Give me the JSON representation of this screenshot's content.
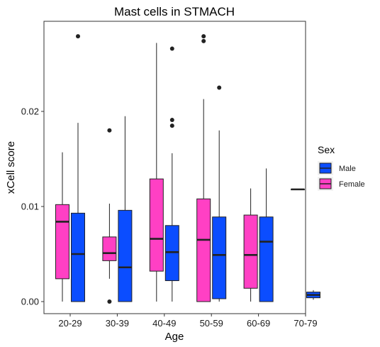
{
  "chart_data": {
    "type": "boxplot",
    "title": "Mast cells in STMACH",
    "xlabel": "Age",
    "ylabel": "xCell score",
    "categories": [
      "20-29",
      "30-39",
      "40-49",
      "50-59",
      "60-69",
      "70-79"
    ],
    "y_ticks": [
      0.0,
      0.01,
      0.02
    ],
    "y_tick_labels": [
      "0.00",
      "0.01",
      "0.02"
    ],
    "ylim": [
      -0.0013,
      0.0294
    ],
    "grid": false,
    "legend": {
      "title": "Sex",
      "position": "right",
      "entries": [
        {
          "name": "Male",
          "color": "#0b4dff"
        },
        {
          "name": "Female",
          "color": "#ff40c4"
        }
      ]
    },
    "series": [
      {
        "name": "Female",
        "color": "#ff40c4",
        "boxes": [
          {
            "category": "20-29",
            "whisker_low": 0.0,
            "q1": 0.0024,
            "median": 0.0084,
            "q3": 0.0102,
            "whisker_high": 0.0157,
            "outliers": []
          },
          {
            "category": "30-39",
            "whisker_low": 0.0024,
            "q1": 0.0043,
            "median": 0.0051,
            "q3": 0.0068,
            "whisker_high": 0.0103,
            "outliers": [
              0.018,
              0.0
            ]
          },
          {
            "category": "40-49",
            "whisker_low": 0.0,
            "q1": 0.0032,
            "median": 0.0066,
            "q3": 0.0129,
            "whisker_high": 0.0272,
            "outliers": []
          },
          {
            "category": "50-59",
            "whisker_low": 0.0,
            "q1": 0.0,
            "median": 0.0065,
            "q3": 0.0108,
            "whisker_high": 0.0213,
            "outliers": [
              0.0279,
              0.0274
            ]
          },
          {
            "category": "60-69",
            "whisker_low": 0.0,
            "q1": 0.0014,
            "median": 0.0049,
            "q3": 0.0091,
            "whisker_high": 0.0119,
            "outliers": []
          },
          {
            "category": "70-79",
            "whisker_low": 0.0118,
            "q1": 0.0118,
            "median": 0.0118,
            "q3": 0.0118,
            "whisker_high": 0.0118,
            "outliers": []
          }
        ]
      },
      {
        "name": "Male",
        "color": "#0b4dff",
        "boxes": [
          {
            "category": "20-29",
            "whisker_low": 0.0,
            "q1": 0.0,
            "median": 0.005,
            "q3": 0.0093,
            "whisker_high": 0.0188,
            "outliers": [
              0.0279
            ]
          },
          {
            "category": "30-39",
            "whisker_low": 0.0,
            "q1": 0.0,
            "median": 0.0036,
            "q3": 0.0096,
            "whisker_high": 0.0195,
            "outliers": []
          },
          {
            "category": "40-49",
            "whisker_low": 0.0,
            "q1": 0.0022,
            "median": 0.0052,
            "q3": 0.008,
            "whisker_high": 0.0156,
            "outliers": [
              0.0266,
              0.0191,
              0.0185
            ]
          },
          {
            "category": "50-59",
            "whisker_low": 0.0,
            "q1": 0.0003,
            "median": 0.0049,
            "q3": 0.0089,
            "whisker_high": 0.018,
            "outliers": [
              0.0225
            ]
          },
          {
            "category": "60-69",
            "whisker_low": 0.0,
            "q1": 0.0,
            "median": 0.0063,
            "q3": 0.0089,
            "whisker_high": 0.014,
            "outliers": []
          },
          {
            "category": "70-79",
            "whisker_low": 0.0002,
            "q1": 0.0004,
            "median": 0.0007,
            "q3": 0.001,
            "whisker_high": 0.0012,
            "outliers": []
          }
        ]
      }
    ]
  }
}
